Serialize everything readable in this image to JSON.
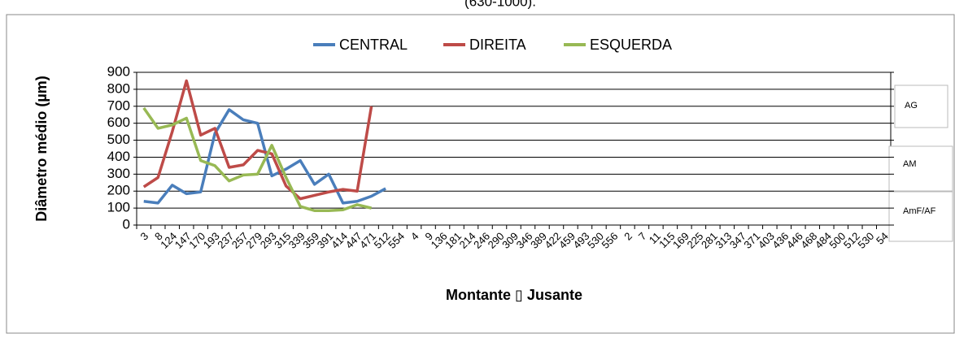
{
  "chart_data": {
    "type": "line",
    "title": "(630-1000).",
    "xlabel": "Montante ▯ Jusante",
    "ylabel": "Diâmetro médio (µm)",
    "categories": [
      "3",
      "8",
      "124",
      "147",
      "170",
      "193",
      "237",
      "257",
      "279",
      "293",
      "315",
      "339",
      "359",
      "391",
      "414",
      "447",
      "471",
      "512",
      "554",
      "4",
      "9",
      "136",
      "181",
      "214",
      "246",
      "290",
      "309",
      "346",
      "389",
      "422",
      "459",
      "493",
      "530",
      "556",
      "2",
      "7",
      "11",
      "115",
      "169",
      "225",
      "281",
      "313",
      "347",
      "371",
      "403",
      "436",
      "446",
      "468",
      "484",
      "500",
      "512",
      "530",
      "54"
    ],
    "series": [
      {
        "name": "CENTRAL",
        "color": "#4a7ebb",
        "values": [
          140,
          130,
          235,
          185,
          195,
          540,
          680,
          620,
          600,
          290,
          330,
          380,
          240,
          300,
          130,
          140,
          170,
          215,
          null,
          null,
          null,
          null,
          null,
          null,
          null,
          null,
          null,
          null,
          null,
          null,
          null,
          null,
          null,
          null,
          null,
          null,
          null,
          null,
          null,
          null,
          null,
          null,
          null,
          null,
          null,
          null,
          null,
          null,
          null,
          null,
          null,
          null,
          null
        ]
      },
      {
        "name": "DIREITA",
        "color": "#be4b48",
        "values": [
          225,
          280,
          550,
          850,
          530,
          570,
          340,
          355,
          440,
          420,
          230,
          155,
          175,
          195,
          210,
          200,
          700,
          null,
          null,
          null,
          null,
          null,
          null,
          null,
          null,
          null,
          null,
          null,
          null,
          null,
          null,
          null,
          null,
          null,
          null,
          null,
          null,
          null,
          null,
          null,
          null,
          null,
          null,
          null,
          null,
          null,
          null,
          null,
          null,
          null,
          null,
          null,
          null
        ]
      },
      {
        "name": "ESQUERDA",
        "color": "#98b954",
        "values": [
          690,
          570,
          590,
          630,
          380,
          350,
          260,
          295,
          300,
          470,
          280,
          110,
          85,
          85,
          90,
          120,
          100,
          null,
          null,
          null,
          null,
          null,
          null,
          null,
          null,
          null,
          null,
          null,
          null,
          null,
          null,
          null,
          null,
          null,
          null,
          null,
          null,
          null,
          null,
          null,
          null,
          null,
          null,
          null,
          null,
          null,
          null,
          null,
          null,
          null,
          null,
          null,
          null
        ]
      }
    ],
    "ylim": [
      0,
      900
    ],
    "yticks": [
      0,
      100,
      200,
      300,
      400,
      500,
      600,
      700,
      800,
      900
    ],
    "grid": true,
    "legend": "top",
    "annotations": [
      "AG",
      "AM",
      "AmF/AF"
    ]
  }
}
